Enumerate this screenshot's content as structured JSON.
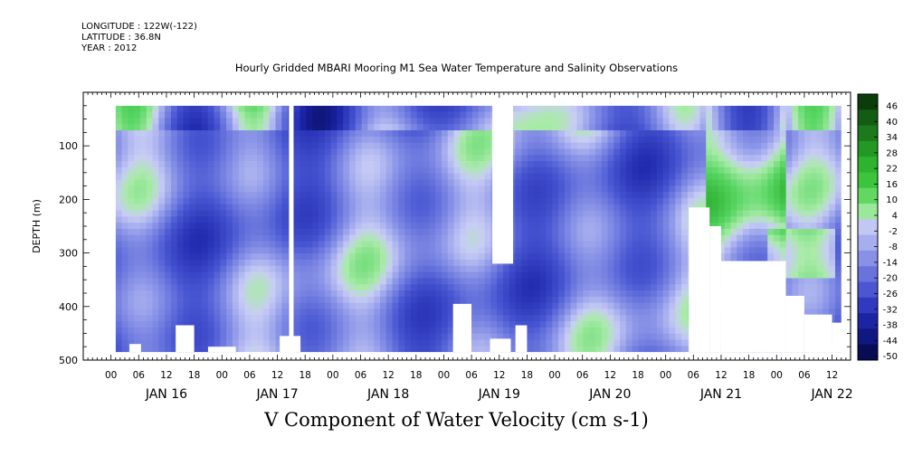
{
  "header": {
    "longitude": "LONGITUDE : 122W(-122)",
    "latitude": "LATITUDE : 36.8N",
    "year": "YEAR : 2012"
  },
  "chart_data": {
    "type": "heatmap",
    "title": "Hourly Gridded MBARI Mooring M1 Sea Water Temperature and Salinity Observations",
    "xlabel": "V Component of Water Velocity (cm s-1)",
    "ylabel": "DEPTH (m)",
    "ylim": [
      500,
      0
    ],
    "y_ticks": [
      100,
      200,
      300,
      400,
      500
    ],
    "x_range_hours": [
      -6,
      160
    ],
    "x_hour_ticks": [
      "00",
      "06",
      "12",
      "18",
      "00",
      "06",
      "12",
      "18",
      "00",
      "06",
      "12",
      "18",
      "00",
      "06",
      "12",
      "18",
      "00",
      "06",
      "12",
      "18",
      "00",
      "06",
      "12",
      "18",
      "00",
      "06",
      "12"
    ],
    "day_labels": [
      "JAN 16",
      "JAN 17",
      "JAN 18",
      "JAN 19",
      "JAN 20",
      "JAN 21",
      "JAN 22"
    ],
    "colorbar": {
      "labels": [
        "46",
        "40",
        "34",
        "28",
        "22",
        "16",
        "10",
        "4",
        "-2",
        "-8",
        "-14",
        "-20",
        "-26",
        "-32",
        "-38",
        "-44",
        "-50"
      ],
      "colors": [
        "#0b3d0b",
        "#135c13",
        "#1b7a1b",
        "#239923",
        "#2db32d",
        "#3cc43c",
        "#62d762",
        "#9ae89a",
        "#c2c8f3",
        "#a6aeee",
        "#8891e6",
        "#6a73dc",
        "#4c56d1",
        "#3039bf",
        "#1d24a3",
        "#101780",
        "#070c55"
      ]
    },
    "data_region": {
      "start_hour": 1,
      "end_hour": 158,
      "top_depth_m": 25,
      "bottom_depth_m": 485
    },
    "color_scale": [
      -50,
      50
    ]
  }
}
